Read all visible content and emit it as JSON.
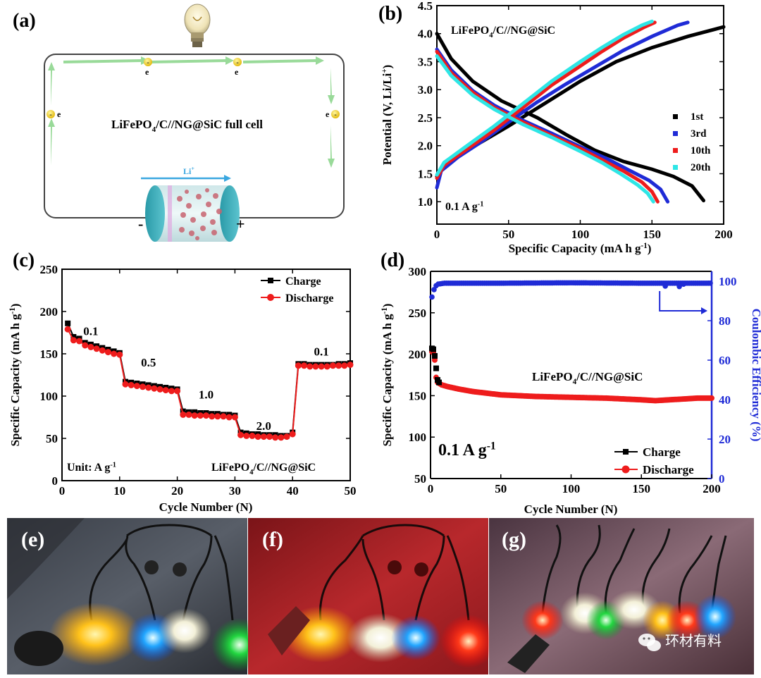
{
  "panel_a": {
    "letter": "(a)",
    "cell_label": "LiFePO",
    "cell_sub": "4",
    "cell_label_rest": "/C//NG@SiC  full cell",
    "li_label": "Li",
    "li_sup": "+",
    "electron": "e",
    "minus": "-",
    "plus": "+"
  },
  "panel_e": {
    "letter": "(e)"
  },
  "panel_f": {
    "letter": "(f)"
  },
  "panel_g": {
    "letter": "(g)"
  },
  "watermark": "环材有料",
  "colors": {
    "black": "#000000",
    "blue": "#1f2bd6",
    "red": "#ee1c1c",
    "cyan": "#2ee6e6",
    "arrow": "#8fd68f"
  },
  "chart_data": [
    {
      "id": "b",
      "letter": "(b)",
      "type": "line",
      "title": "LiFePO4/C//NG@SiC",
      "title_parts": [
        "LiFePO",
        "4",
        "/C//NG@SiC"
      ],
      "annotation": "0.1 A g",
      "annotation_sup": "-1",
      "xlabel": "Specific Capacity (mA h g",
      "xlabel_sup": "-1",
      "xlabel_end": ")",
      "ylabel": "Potential (V, Li/Li",
      "ylabel_sup": "+",
      "ylabel_end": ")",
      "xlim": [
        0,
        200
      ],
      "ylim": [
        0.6,
        4.5
      ],
      "xticks": [
        "0",
        "50",
        "100",
        "150",
        "200"
      ],
      "yticks": [
        "1.0",
        "1.5",
        "2.0",
        "2.5",
        "3.0",
        "3.5",
        "4.0",
        "4.5"
      ],
      "legend": [
        "1st",
        "3rd",
        "10th",
        "20th"
      ],
      "series": [
        {
          "name": "1st",
          "color": "#000000",
          "charge": [
            [
              0,
              1.45
            ],
            [
              5,
              1.62
            ],
            [
              15,
              1.82
            ],
            [
              30,
              2.05
            ],
            [
              50,
              2.35
            ],
            [
              75,
              2.75
            ],
            [
              100,
              3.15
            ],
            [
              125,
              3.5
            ],
            [
              150,
              3.75
            ],
            [
              175,
              3.95
            ],
            [
              200,
              4.12
            ]
          ],
          "discharge": [
            [
              0,
              4.0
            ],
            [
              10,
              3.55
            ],
            [
              25,
              3.15
            ],
            [
              45,
              2.8
            ],
            [
              70,
              2.5
            ],
            [
              90,
              2.2
            ],
            [
              110,
              1.92
            ],
            [
              130,
              1.72
            ],
            [
              150,
              1.58
            ],
            [
              165,
              1.45
            ],
            [
              178,
              1.28
            ],
            [
              186,
              1.02
            ]
          ]
        },
        {
          "name": "3rd",
          "color": "#1f2bd6",
          "charge": [
            [
              0,
              1.25
            ],
            [
              3,
              1.55
            ],
            [
              15,
              1.8
            ],
            [
              30,
              2.05
            ],
            [
              50,
              2.42
            ],
            [
              70,
              2.78
            ],
            [
              90,
              3.1
            ],
            [
              110,
              3.4
            ],
            [
              130,
              3.7
            ],
            [
              150,
              3.95
            ],
            [
              168,
              4.15
            ],
            [
              175,
              4.2
            ]
          ],
          "discharge": [
            [
              0,
              3.72
            ],
            [
              10,
              3.35
            ],
            [
              25,
              2.98
            ],
            [
              40,
              2.72
            ],
            [
              60,
              2.45
            ],
            [
              80,
              2.22
            ],
            [
              100,
              1.98
            ],
            [
              120,
              1.75
            ],
            [
              135,
              1.55
            ],
            [
              148,
              1.38
            ],
            [
              156,
              1.22
            ],
            [
              161,
              1.0
            ]
          ]
        },
        {
          "name": "10th",
          "color": "#ee1c1c",
          "charge": [
            [
              0,
              1.42
            ],
            [
              5,
              1.65
            ],
            [
              20,
              1.92
            ],
            [
              40,
              2.28
            ],
            [
              60,
              2.68
            ],
            [
              80,
              3.08
            ],
            [
              100,
              3.42
            ],
            [
              115,
              3.68
            ],
            [
              130,
              3.92
            ],
            [
              145,
              4.12
            ],
            [
              152,
              4.2
            ]
          ],
          "discharge": [
            [
              0,
              3.68
            ],
            [
              10,
              3.3
            ],
            [
              25,
              2.95
            ],
            [
              40,
              2.68
            ],
            [
              60,
              2.42
            ],
            [
              80,
              2.18
            ],
            [
              100,
              1.95
            ],
            [
              115,
              1.75
            ],
            [
              130,
              1.55
            ],
            [
              143,
              1.35
            ],
            [
              150,
              1.18
            ],
            [
              154,
              1.0
            ]
          ]
        },
        {
          "name": "20th",
          "color": "#2ee6e6",
          "charge": [
            [
              0,
              1.48
            ],
            [
              5,
              1.7
            ],
            [
              20,
              1.98
            ],
            [
              40,
              2.35
            ],
            [
              60,
              2.75
            ],
            [
              80,
              3.15
            ],
            [
              100,
              3.5
            ],
            [
              115,
              3.75
            ],
            [
              130,
              3.98
            ],
            [
              143,
              4.15
            ],
            [
              150,
              4.22
            ]
          ],
          "discharge": [
            [
              0,
              3.6
            ],
            [
              10,
              3.25
            ],
            [
              25,
              2.9
            ],
            [
              40,
              2.65
            ],
            [
              60,
              2.38
            ],
            [
              80,
              2.15
            ],
            [
              100,
              1.9
            ],
            [
              115,
              1.7
            ],
            [
              128,
              1.5
            ],
            [
              140,
              1.3
            ],
            [
              147,
              1.15
            ],
            [
              151,
              1.0
            ]
          ]
        }
      ]
    },
    {
      "id": "c",
      "letter": "(c)",
      "type": "line",
      "xlabel": "Cycle Number (N)",
      "ylabel": "Specific Capacity (mA h g",
      "ylabel_sup": "-1",
      "ylabel_end": ")",
      "xlim": [
        0,
        50
      ],
      "ylim": [
        0,
        250
      ],
      "xticks": [
        "0",
        "10",
        "20",
        "30",
        "40",
        "50"
      ],
      "yticks": [
        "0",
        "50",
        "100",
        "150",
        "200",
        "250"
      ],
      "legend": [
        "Charge",
        "Discharge"
      ],
      "unit_label": "Unit: A g",
      "unit_sup": "-1",
      "cell_label_parts": [
        "LiFePO",
        "4",
        "/C//NG@SiC"
      ],
      "rate_labels": [
        {
          "text": "0.1",
          "x": 5,
          "y": 172
        },
        {
          "text": "0.5",
          "x": 15,
          "y": 135
        },
        {
          "text": "1.0",
          "x": 25,
          "y": 97
        },
        {
          "text": "2.0",
          "x": 35,
          "y": 60
        },
        {
          "text": "0.1",
          "x": 45,
          "y": 148
        }
      ],
      "x": [
        1,
        2,
        3,
        4,
        5,
        6,
        7,
        8,
        9,
        10,
        11,
        12,
        13,
        14,
        15,
        16,
        17,
        18,
        19,
        20,
        21,
        22,
        23,
        24,
        25,
        26,
        27,
        28,
        29,
        30,
        31,
        32,
        33,
        34,
        35,
        36,
        37,
        38,
        39,
        40,
        41,
        42,
        43,
        44,
        45,
        46,
        47,
        48,
        49,
        50
      ],
      "series": [
        {
          "name": "Charge",
          "color": "#000000",
          "values": [
            186,
            170,
            168,
            163,
            161,
            159,
            157,
            155,
            153,
            151,
            117,
            116,
            115,
            114,
            113,
            112,
            111,
            110,
            109,
            108,
            82,
            81,
            81,
            80,
            80,
            79,
            79,
            78,
            78,
            77,
            57,
            56,
            55,
            55,
            54,
            54,
            54,
            53,
            53,
            57,
            138,
            138,
            137,
            137,
            137,
            137,
            137,
            138,
            138,
            139
          ]
        },
        {
          "name": "Discharge",
          "color": "#ee1c1c",
          "values": [
            179,
            166,
            165,
            160,
            158,
            156,
            154,
            152,
            150,
            149,
            114,
            113,
            112,
            111,
            110,
            109,
            108,
            107,
            106,
            106,
            78,
            78,
            77,
            77,
            77,
            76,
            76,
            76,
            75,
            75,
            54,
            53,
            53,
            52,
            52,
            52,
            51,
            51,
            52,
            55,
            136,
            136,
            135,
            135,
            135,
            135,
            136,
            136,
            136,
            137
          ]
        }
      ]
    },
    {
      "id": "d",
      "letter": "(d)",
      "type": "scatter",
      "title_parts": [
        "LiFePO",
        "4",
        "/C//NG@SiC"
      ],
      "annotation": "0.1 A g",
      "annotation_sup": "-1",
      "xlabel": "Cycle Number (N)",
      "ylabel": "Specific Capacity (mA h g",
      "ylabel_sup": "-1",
      "ylabel_end": ")",
      "ylabel_right": "Coulombic Efficiency (%)",
      "xlim": [
        0,
        200
      ],
      "ylim": [
        50,
        300
      ],
      "ylim_right": [
        0,
        105
      ],
      "xticks": [
        "0",
        "50",
        "100",
        "150",
        "200"
      ],
      "yticks": [
        "50",
        "100",
        "150",
        "200",
        "250",
        "300"
      ],
      "yticks_right": [
        "0",
        "20",
        "40",
        "60",
        "80",
        "100"
      ],
      "legend": [
        "Charge",
        "Discharge"
      ],
      "charge_points": [
        [
          1,
          207
        ],
        [
          2,
          206
        ],
        [
          3,
          198
        ],
        [
          4,
          183
        ],
        [
          5,
          169
        ],
        [
          6,
          166
        ]
      ],
      "discharge_curve": [
        [
          1,
          203
        ],
        [
          2,
          202
        ],
        [
          3,
          193
        ],
        [
          4,
          172
        ],
        [
          5,
          166
        ],
        [
          8,
          163
        ],
        [
          12,
          161
        ],
        [
          20,
          158
        ],
        [
          30,
          155
        ],
        [
          50,
          151
        ],
        [
          75,
          149
        ],
        [
          100,
          148
        ],
        [
          125,
          147
        ],
        [
          150,
          145
        ],
        [
          160,
          144
        ],
        [
          170,
          145
        ],
        [
          180,
          146
        ],
        [
          190,
          147
        ],
        [
          200,
          147
        ]
      ],
      "ce_curve": [
        [
          1,
          92
        ],
        [
          3,
          97
        ],
        [
          5,
          98.5
        ],
        [
          10,
          99
        ],
        [
          50,
          99
        ],
        [
          100,
          99.2
        ],
        [
          150,
          99
        ],
        [
          200,
          99
        ]
      ],
      "ce_dips": [
        [
          167,
          97.5
        ],
        [
          177,
          97.3
        ],
        [
          180,
          98.5
        ]
      ],
      "ce_arrow_from": [
        163,
        95
      ],
      "ce_arrow_to": [
        197,
        85
      ]
    }
  ]
}
